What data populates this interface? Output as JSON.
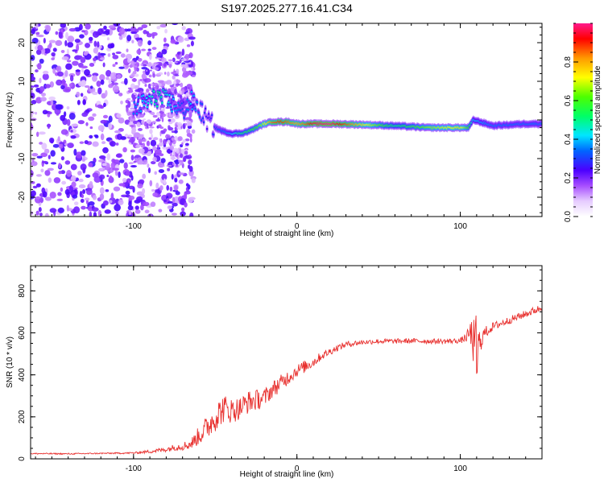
{
  "title": "S197.2025.277.16.41.C34",
  "chart_data": [
    {
      "type": "heatmap",
      "name": "spectrogram",
      "xlabel": "Height of straight line (km)",
      "ylabel": "Frequency (Hz)",
      "xlim": [
        -163,
        150
      ],
      "ylim": [
        -25,
        25
      ],
      "xticks": [
        -100,
        0,
        100
      ],
      "xtick_labels": [
        "-100",
        "0",
        "100"
      ],
      "yticks": [
        -20,
        -10,
        0,
        10,
        20
      ],
      "ytick_labels": [
        "-20",
        "-10",
        "0",
        "10",
        "20"
      ],
      "colorbar": {
        "label": "Normalized spectral amplitude",
        "range": [
          0,
          1
        ],
        "ticks": [
          0.0,
          0.2,
          0.4,
          0.6,
          0.8
        ],
        "tick_labels": [
          "0.0",
          "0.2",
          "0.4",
          "0.6",
          "0.8"
        ]
      },
      "ridge": {
        "description": "frequency of the dominant signal along the track",
        "x": [
          -100,
          -95,
          -90,
          -85,
          -80,
          -75,
          -70,
          -65,
          -60,
          -55,
          -50,
          -45,
          -40,
          -35,
          -30,
          -25,
          -20,
          -15,
          -10,
          -5,
          0,
          5,
          10,
          20,
          40,
          60,
          80,
          100,
          105,
          108,
          120,
          140,
          150
        ],
        "freq": [
          3,
          4,
          5,
          6,
          5,
          4,
          2,
          5,
          3,
          0,
          -2,
          -3,
          -3.5,
          -3.5,
          -3,
          -2,
          -1,
          -0.5,
          -0.5,
          -0.5,
          -1,
          -1,
          -1,
          -1,
          -1.2,
          -1.5,
          -2,
          -2,
          -2,
          0,
          -1.5,
          -1,
          -1
        ],
        "amplitude": [
          0.35,
          0.4,
          0.45,
          0.5,
          0.45,
          0.4,
          0.3,
          0.4,
          0.35,
          0.25,
          0.3,
          0.35,
          0.4,
          0.5,
          0.55,
          0.6,
          0.7,
          0.85,
          0.9,
          0.85,
          0.8,
          0.85,
          0.95,
          1.0,
          0.75,
          0.5,
          0.65,
          0.75,
          0.6,
          0.4,
          0.35,
          0.35,
          0.35
        ]
      }
    },
    {
      "type": "line",
      "name": "snr",
      "xlabel": "Height of straight line (km)",
      "ylabel": "SNR (10 * v/v)",
      "xlim": [
        -163,
        150
      ],
      "ylim": [
        0,
        920
      ],
      "xticks": [
        -100,
        0,
        100
      ],
      "xtick_labels": [
        "-100",
        "0",
        "100"
      ],
      "yticks": [
        0,
        200,
        400,
        600,
        800
      ],
      "ytick_labels": [
        "0",
        "200",
        "400",
        "600",
        "800"
      ],
      "series": [
        {
          "name": "SNR",
          "color": "#e8312f",
          "x": [
            -163,
            -140,
            -120,
            -100,
            -90,
            -80,
            -75,
            -70,
            -65,
            -60,
            -55,
            -50,
            -45,
            -40,
            -35,
            -30,
            -25,
            -20,
            -15,
            -10,
            -5,
            0,
            5,
            10,
            15,
            20,
            25,
            30,
            40,
            50,
            60,
            70,
            80,
            90,
            100,
            104,
            106,
            108,
            110,
            112,
            115,
            120,
            130,
            140,
            150
          ],
          "values": [
            25,
            24,
            26,
            28,
            35,
            45,
            55,
            60,
            70,
            110,
            150,
            200,
            240,
            230,
            240,
            270,
            280,
            290,
            330,
            360,
            390,
            420,
            440,
            460,
            490,
            510,
            530,
            545,
            555,
            560,
            560,
            562,
            560,
            560,
            562,
            580,
            600,
            560,
            520,
            560,
            600,
            630,
            660,
            690,
            720
          ],
          "noise": [
            3,
            3,
            3,
            4,
            8,
            12,
            15,
            20,
            25,
            45,
            60,
            70,
            70,
            60,
            55,
            55,
            50,
            45,
            40,
            40,
            35,
            30,
            30,
            25,
            20,
            18,
            15,
            14,
            12,
            12,
            12,
            12,
            12,
            12,
            12,
            25,
            60,
            110,
            120,
            60,
            30,
            20,
            18,
            18,
            18
          ]
        }
      ]
    }
  ]
}
